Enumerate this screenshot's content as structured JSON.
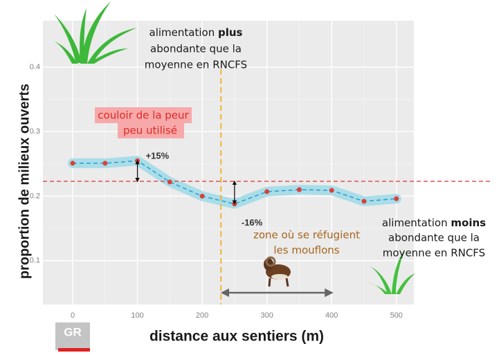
{
  "chart_data": {
    "type": "line",
    "x_label": "distance aux sentiers (m)",
    "y_label": "proportion de milieux ouverts",
    "x": [
      0,
      50,
      100,
      150,
      200,
      250,
      300,
      350,
      400,
      450,
      500
    ],
    "series": [
      {
        "color": "#d9403a",
        "band_color": "#a9dde8",
        "values": [
          0.251,
          0.251,
          0.255,
          0.222,
          0.2,
          0.188,
          0.207,
          0.21,
          0.209,
          0.192,
          0.196
        ]
      }
    ],
    "mean_line": {
      "value": 0.223,
      "color": "#e05050"
    },
    "refuge_line": {
      "value": 229,
      "color": "#f0b020"
    },
    "xlim": [
      -46,
      527
    ],
    "ylim": [
      0.032,
      0.472
    ],
    "xticks": [
      0,
      100,
      200,
      300,
      400,
      500
    ],
    "yticks": [
      0.1,
      0.2,
      0.3,
      0.4
    ],
    "grid": true,
    "annotations": {
      "plus_label": "+15%",
      "minus_label": "-16%",
      "fear_corridor": [
        "couloir de la peur",
        "peu utilisé"
      ],
      "refuge_zone": [
        "zone où se réfugient",
        "les mouflons"
      ],
      "food_high": {
        "prefix": "alimentation",
        "emphasis": "plus",
        "rest": [
          "abondante que la",
          "moyenne en RNCFS"
        ]
      },
      "food_low": {
        "prefix": "alimentation",
        "emphasis": "moins",
        "rest": [
          "abondante que la",
          "moyenne en RNCFS"
        ]
      }
    },
    "logo": "GR"
  }
}
